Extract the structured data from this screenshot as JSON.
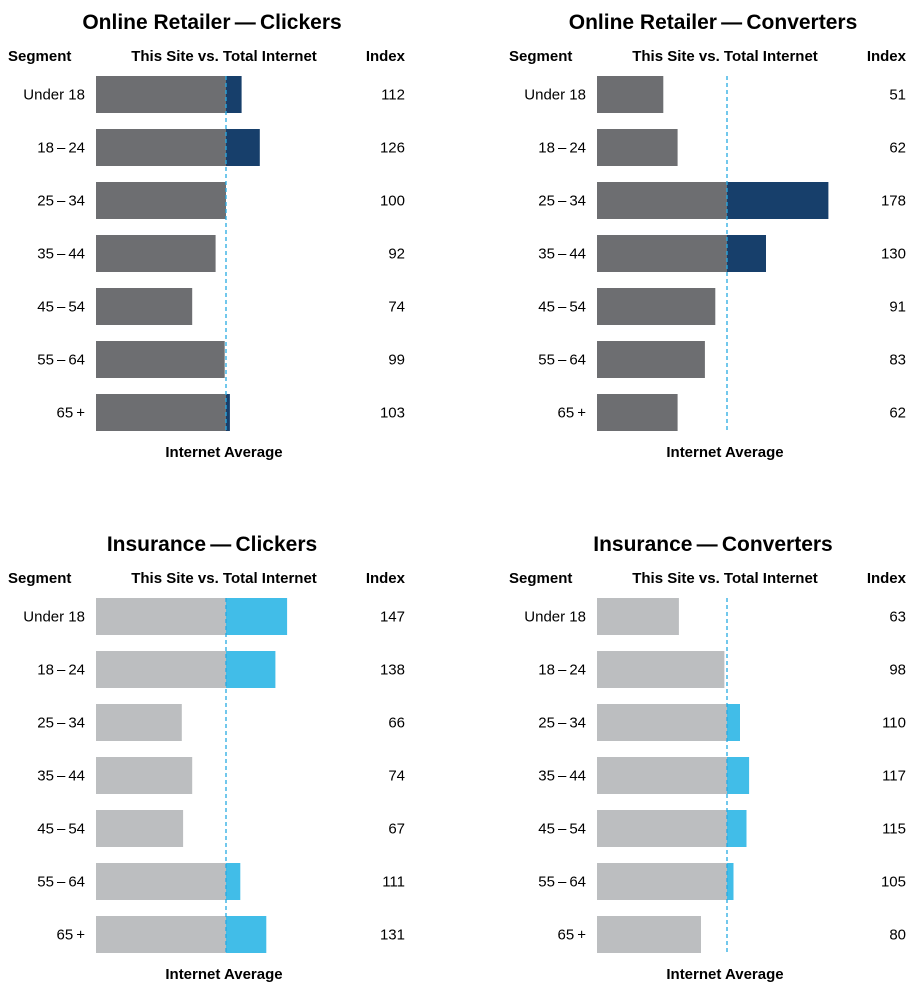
{
  "chart_data": [
    {
      "type": "bar",
      "title": "Online Retailer — Clickers",
      "header_segment": "Segment",
      "header_bars": "This Site vs. Total Internet",
      "header_index": "Index",
      "reference_label": "Internet Average",
      "reference_value": 100,
      "categories": [
        "Under 18",
        "18 – 24",
        "25 – 34",
        "35 – 44",
        "45 – 54",
        "55 – 64",
        "65 +"
      ],
      "values": [
        112,
        126,
        100,
        92,
        74,
        99,
        103
      ],
      "colors": {
        "base": "#6d6e71",
        "above": "#173f6b"
      }
    },
    {
      "type": "bar",
      "title": "Online Retailer — Converters",
      "header_segment": "Segment",
      "header_bars": "This Site vs. Total Internet",
      "header_index": "Index",
      "reference_label": "Internet Average",
      "reference_value": 100,
      "categories": [
        "Under 18",
        "18 – 24",
        "25 – 34",
        "35 – 44",
        "45 – 54",
        "55 – 64",
        "65 +"
      ],
      "values": [
        51,
        62,
        178,
        130,
        91,
        83,
        62
      ],
      "colors": {
        "base": "#6d6e71",
        "above": "#173f6b"
      }
    },
    {
      "type": "bar",
      "title": "Insurance — Clickers",
      "header_segment": "Segment",
      "header_bars": "This Site vs. Total Internet",
      "header_index": "Index",
      "reference_label": "Internet Average",
      "reference_value": 100,
      "categories": [
        "Under 18",
        "18 – 24",
        "25 – 34",
        "35 – 44",
        "45 – 54",
        "55 – 64",
        "65 +"
      ],
      "values": [
        147,
        138,
        66,
        74,
        67,
        111,
        131
      ],
      "colors": {
        "base": "#bcbec0",
        "above": "#41bde8"
      }
    },
    {
      "type": "bar",
      "title": "Insurance — Converters",
      "header_segment": "Segment",
      "header_bars": "This Site vs. Total Internet",
      "header_index": "Index",
      "reference_label": "Internet Average",
      "reference_value": 100,
      "categories": [
        "Under 18",
        "18 – 24",
        "25 – 34",
        "35 – 44",
        "45 – 54",
        "55 – 64",
        "65 +"
      ],
      "values": [
        63,
        98,
        110,
        117,
        115,
        105,
        80
      ],
      "colors": {
        "base": "#bcbec0",
        "above": "#41bde8"
      }
    }
  ],
  "reference_line_color": "#27aae1"
}
